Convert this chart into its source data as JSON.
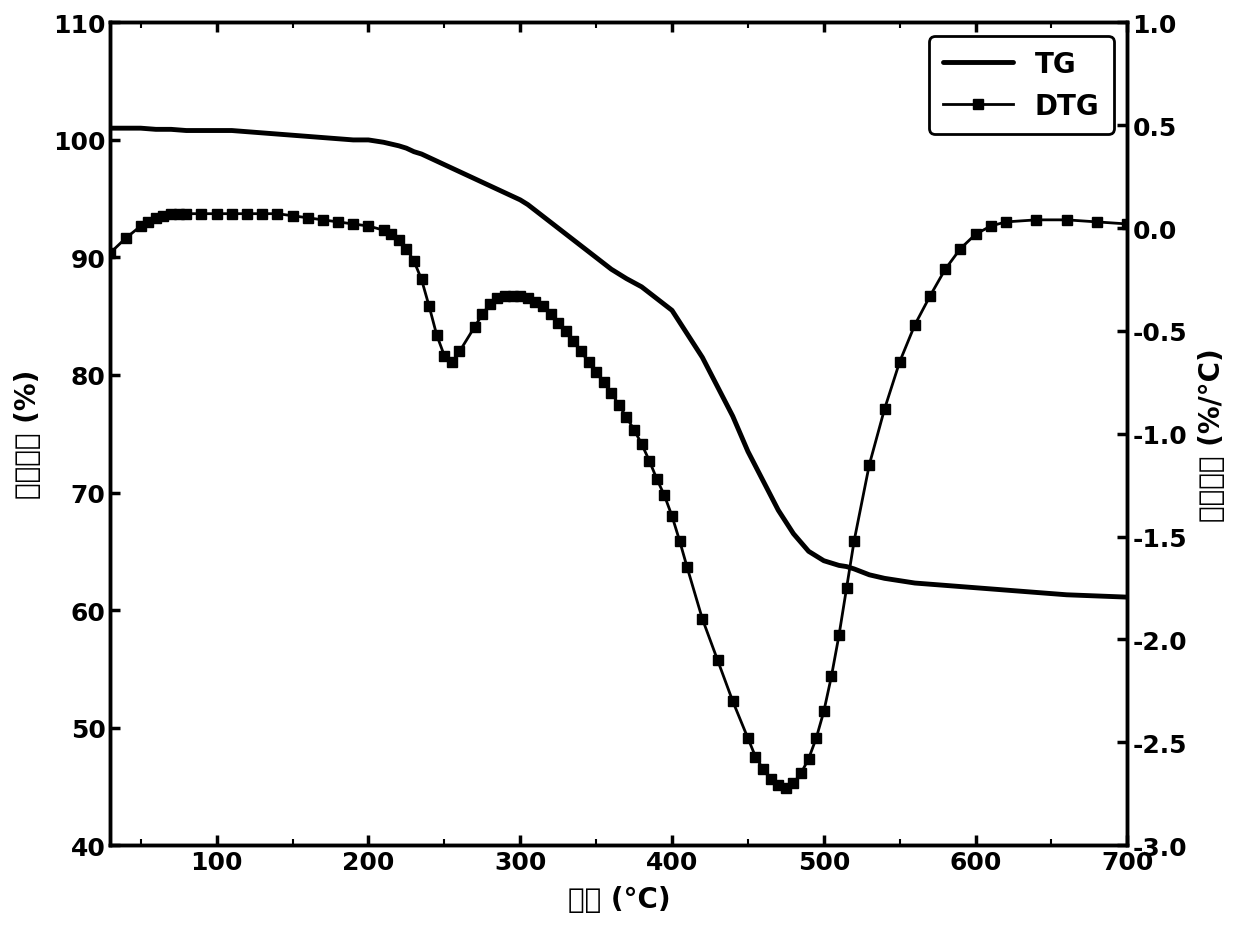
{
  "title": "",
  "xlabel": "温度 (°C)",
  "ylabel_left": "质量分数 (%)",
  "ylabel_right": "一阶导数 (%/°C)",
  "xlim": [
    30,
    700
  ],
  "ylim_left": [
    40,
    110
  ],
  "ylim_right": [
    -3.0,
    1.0
  ],
  "xticks": [
    100,
    200,
    300,
    400,
    500,
    600,
    700
  ],
  "yticks_left": [
    40,
    50,
    60,
    70,
    80,
    90,
    100,
    110
  ],
  "yticks_right": [
    -3.0,
    -2.5,
    -2.0,
    -1.5,
    -1.0,
    -0.5,
    0.0,
    0.5,
    1.0
  ],
  "line_color": "#000000",
  "background_color": "#ffffff",
  "tg_linewidth": 3.5,
  "dtg_linewidth": 2.0,
  "marker": "s",
  "markersize": 7,
  "font_size": 20,
  "tick_font_size": 18,
  "tg_x": [
    30,
    35,
    40,
    50,
    60,
    70,
    80,
    90,
    100,
    110,
    120,
    130,
    140,
    150,
    160,
    170,
    180,
    190,
    200,
    210,
    220,
    225,
    230,
    235,
    240,
    245,
    250,
    255,
    260,
    265,
    270,
    275,
    280,
    285,
    290,
    295,
    300,
    305,
    310,
    320,
    330,
    340,
    350,
    360,
    370,
    380,
    390,
    400,
    410,
    420,
    430,
    440,
    450,
    460,
    470,
    480,
    490,
    500,
    505,
    510,
    515,
    520,
    530,
    540,
    550,
    560,
    570,
    580,
    590,
    600,
    620,
    640,
    660,
    680,
    700
  ],
  "tg_y": [
    101.0,
    101.0,
    101.0,
    101.0,
    100.9,
    100.9,
    100.8,
    100.8,
    100.8,
    100.8,
    100.7,
    100.6,
    100.5,
    100.4,
    100.3,
    100.2,
    100.1,
    100.0,
    100.0,
    99.8,
    99.5,
    99.3,
    99.0,
    98.8,
    98.5,
    98.2,
    97.9,
    97.6,
    97.3,
    97.0,
    96.7,
    96.4,
    96.1,
    95.8,
    95.5,
    95.2,
    94.9,
    94.5,
    94.0,
    93.0,
    92.0,
    91.0,
    90.0,
    89.0,
    88.2,
    87.5,
    86.5,
    85.5,
    83.5,
    81.5,
    79.0,
    76.5,
    73.5,
    71.0,
    68.5,
    66.5,
    65.0,
    64.2,
    64.0,
    63.8,
    63.7,
    63.5,
    63.0,
    62.7,
    62.5,
    62.3,
    62.2,
    62.1,
    62.0,
    61.9,
    61.7,
    61.5,
    61.3,
    61.2,
    61.1
  ],
  "dtg_x": [
    30,
    40,
    50,
    55,
    60,
    65,
    70,
    75,
    80,
    90,
    100,
    110,
    120,
    130,
    140,
    150,
    160,
    170,
    180,
    190,
    200,
    210,
    215,
    220,
    225,
    230,
    235,
    240,
    245,
    250,
    255,
    260,
    270,
    275,
    280,
    285,
    290,
    295,
    300,
    305,
    310,
    315,
    320,
    325,
    330,
    335,
    340,
    345,
    350,
    355,
    360,
    365,
    370,
    375,
    380,
    385,
    390,
    395,
    400,
    405,
    410,
    420,
    430,
    440,
    450,
    455,
    460,
    465,
    470,
    475,
    480,
    485,
    490,
    495,
    500,
    505,
    510,
    515,
    520,
    530,
    540,
    550,
    560,
    570,
    580,
    590,
    600,
    610,
    620,
    640,
    660,
    680,
    700
  ],
  "dtg_y": [
    -0.12,
    -0.05,
    0.01,
    0.03,
    0.05,
    0.06,
    0.07,
    0.07,
    0.07,
    0.07,
    0.07,
    0.07,
    0.07,
    0.07,
    0.07,
    0.06,
    0.05,
    0.04,
    0.03,
    0.02,
    0.01,
    -0.01,
    -0.03,
    -0.06,
    -0.1,
    -0.16,
    -0.25,
    -0.38,
    -0.52,
    -0.62,
    -0.65,
    -0.6,
    -0.48,
    -0.42,
    -0.37,
    -0.34,
    -0.33,
    -0.33,
    -0.33,
    -0.34,
    -0.36,
    -0.38,
    -0.42,
    -0.46,
    -0.5,
    -0.55,
    -0.6,
    -0.65,
    -0.7,
    -0.75,
    -0.8,
    -0.86,
    -0.92,
    -0.98,
    -1.05,
    -1.13,
    -1.22,
    -1.3,
    -1.4,
    -1.52,
    -1.65,
    -1.9,
    -2.1,
    -2.3,
    -2.48,
    -2.57,
    -2.63,
    -2.68,
    -2.71,
    -2.72,
    -2.7,
    -2.65,
    -2.58,
    -2.48,
    -2.35,
    -2.18,
    -1.98,
    -1.75,
    -1.52,
    -1.15,
    -0.88,
    -0.65,
    -0.47,
    -0.33,
    -0.2,
    -0.1,
    -0.03,
    0.01,
    0.03,
    0.04,
    0.04,
    0.03,
    0.02
  ]
}
